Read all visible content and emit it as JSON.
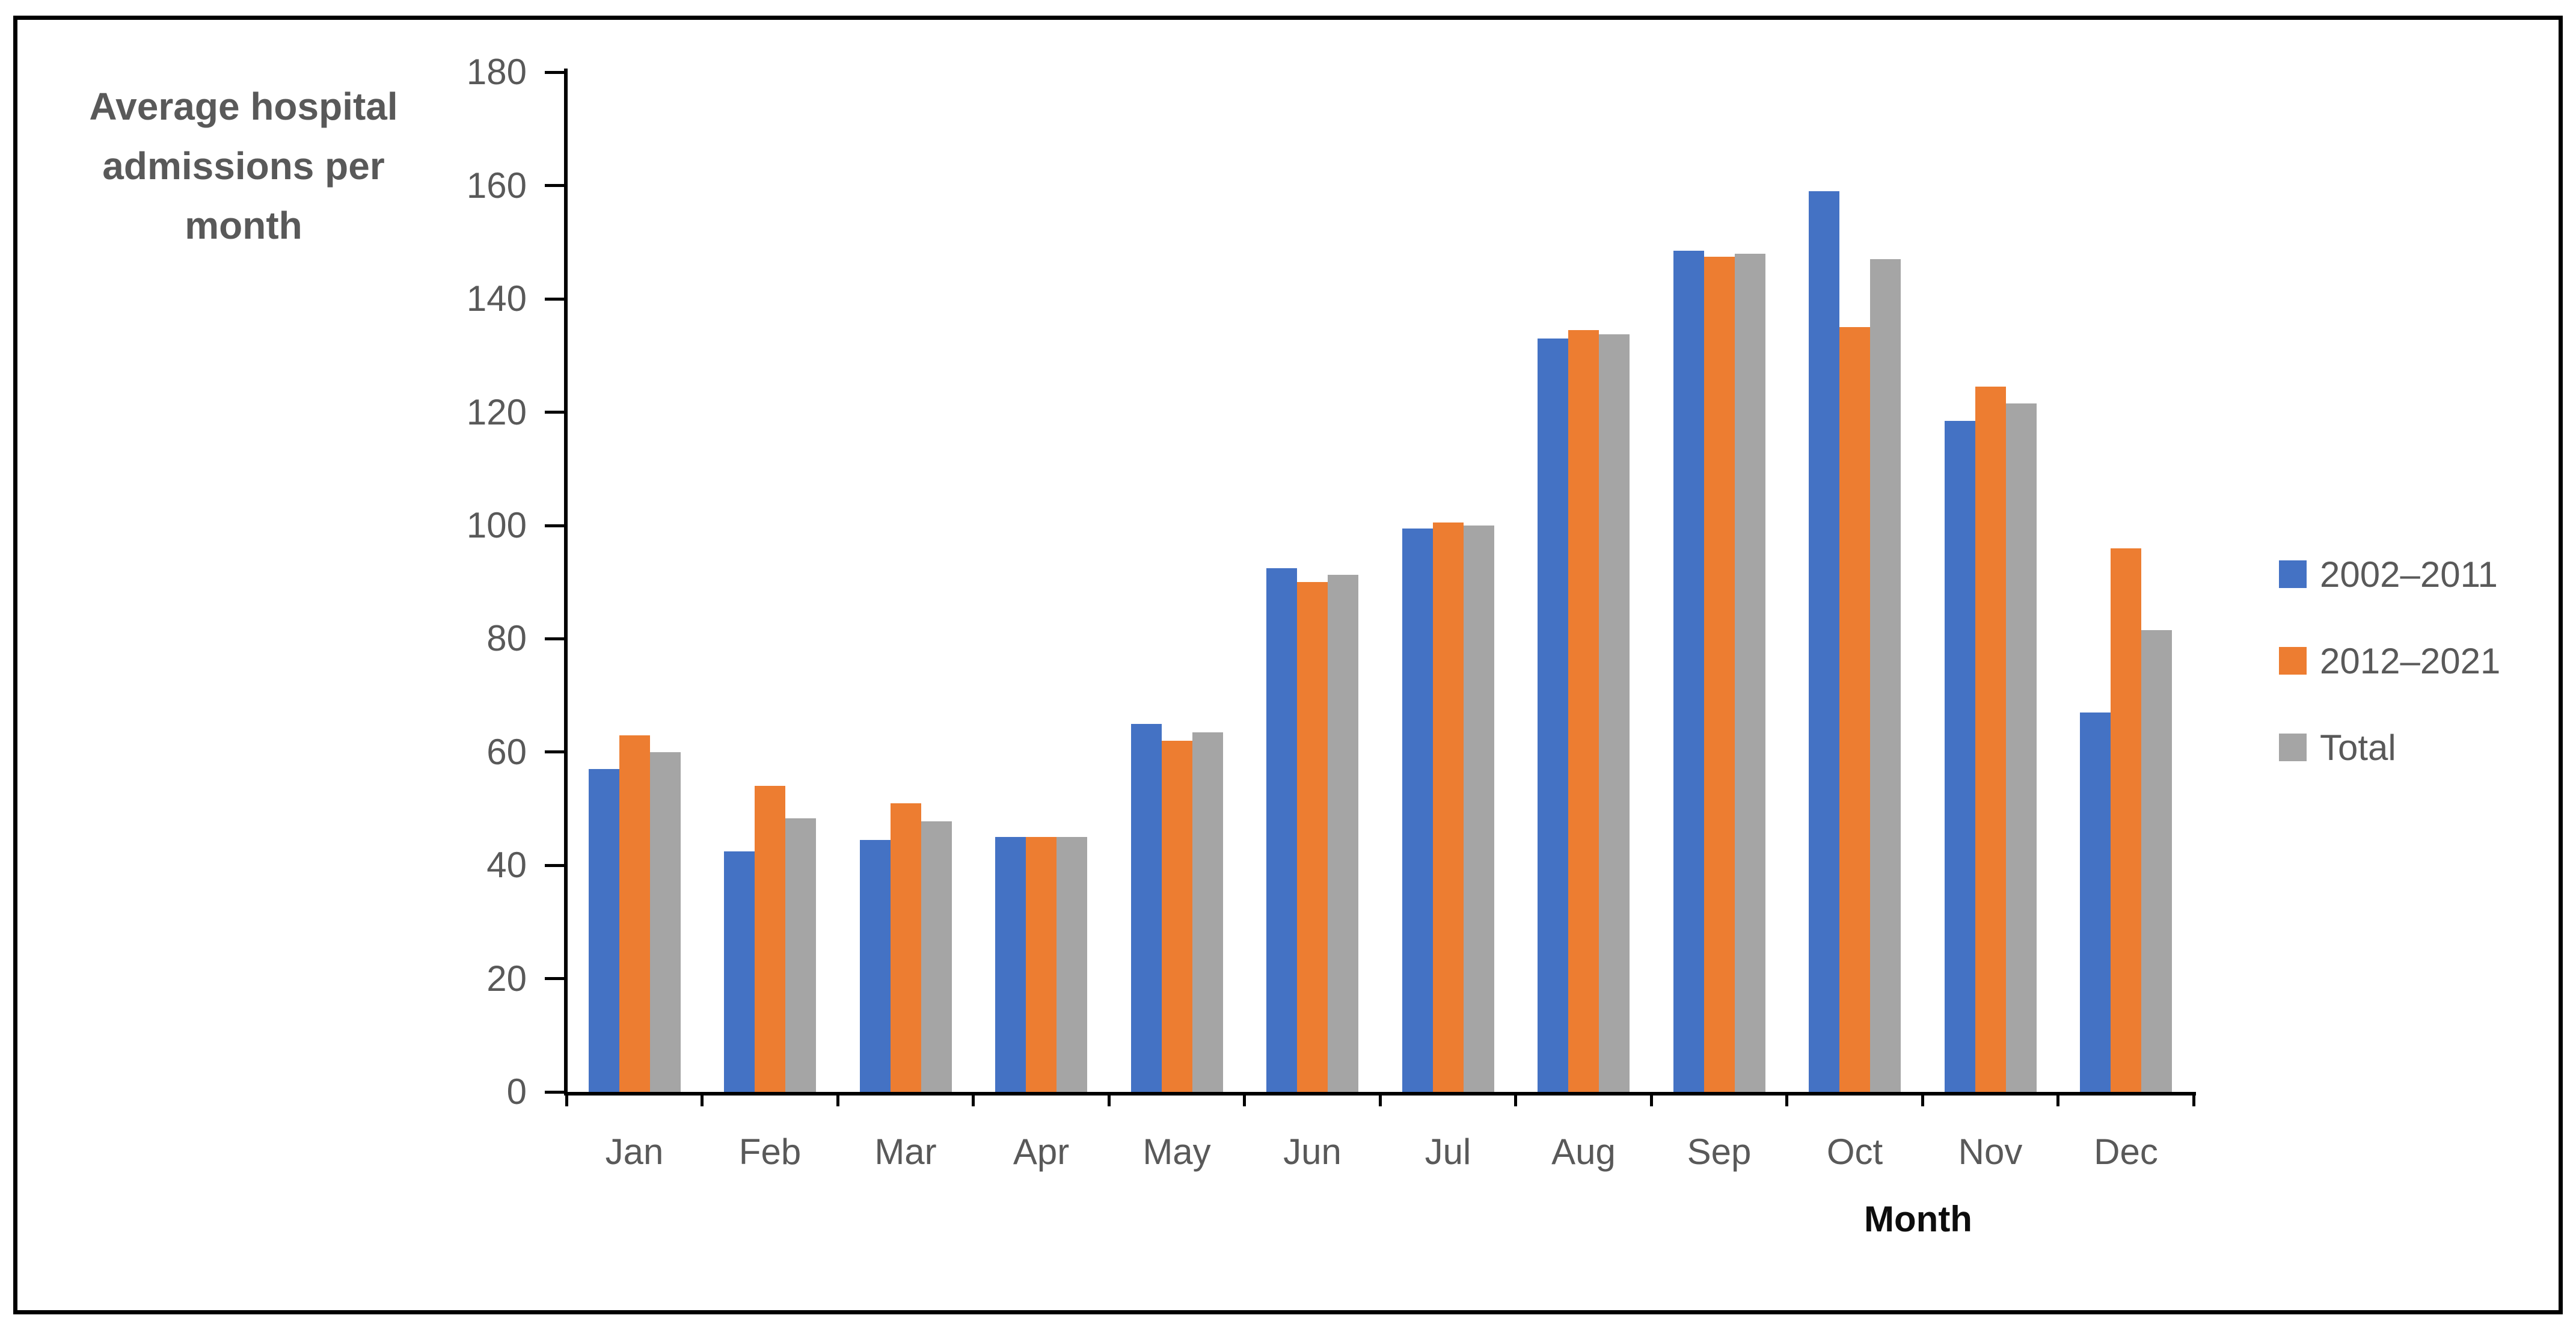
{
  "title": {
    "text": "Average hospital admissions per month"
  },
  "x_axis": {
    "title": "Month"
  },
  "chart_data": {
    "type": "bar",
    "title": "Average hospital admissions per month",
    "xlabel": "Month",
    "ylabel": "Average hospital admissions per month",
    "categories": [
      "Jan",
      "Feb",
      "Mar",
      "Apr",
      "May",
      "Jun",
      "Jul",
      "Aug",
      "Sep",
      "Oct",
      "Nov",
      "Dec"
    ],
    "series": [
      {
        "name": "2002–2011",
        "color": "#4472C4",
        "values": [
          57,
          42.5,
          44.5,
          45,
          65,
          92.5,
          99.5,
          133,
          148.5,
          159,
          118.5,
          67
        ]
      },
      {
        "name": "2012–2021",
        "color": "#ED7D31",
        "values": [
          63,
          54,
          51,
          45,
          62,
          90,
          100.5,
          134.5,
          147.5,
          135,
          124.5,
          96
        ]
      },
      {
        "name": "Total",
        "color": "#A5A5A5",
        "values": [
          60,
          48.25,
          47.75,
          45,
          63.5,
          91.25,
          100,
          133.75,
          148,
          147,
          121.5,
          81.5
        ]
      }
    ],
    "ylim": [
      0,
      180
    ],
    "ytick_step": 20,
    "grid": false,
    "legend_position": "right",
    "axis_color": "#000000",
    "label_color": "#595959"
  }
}
